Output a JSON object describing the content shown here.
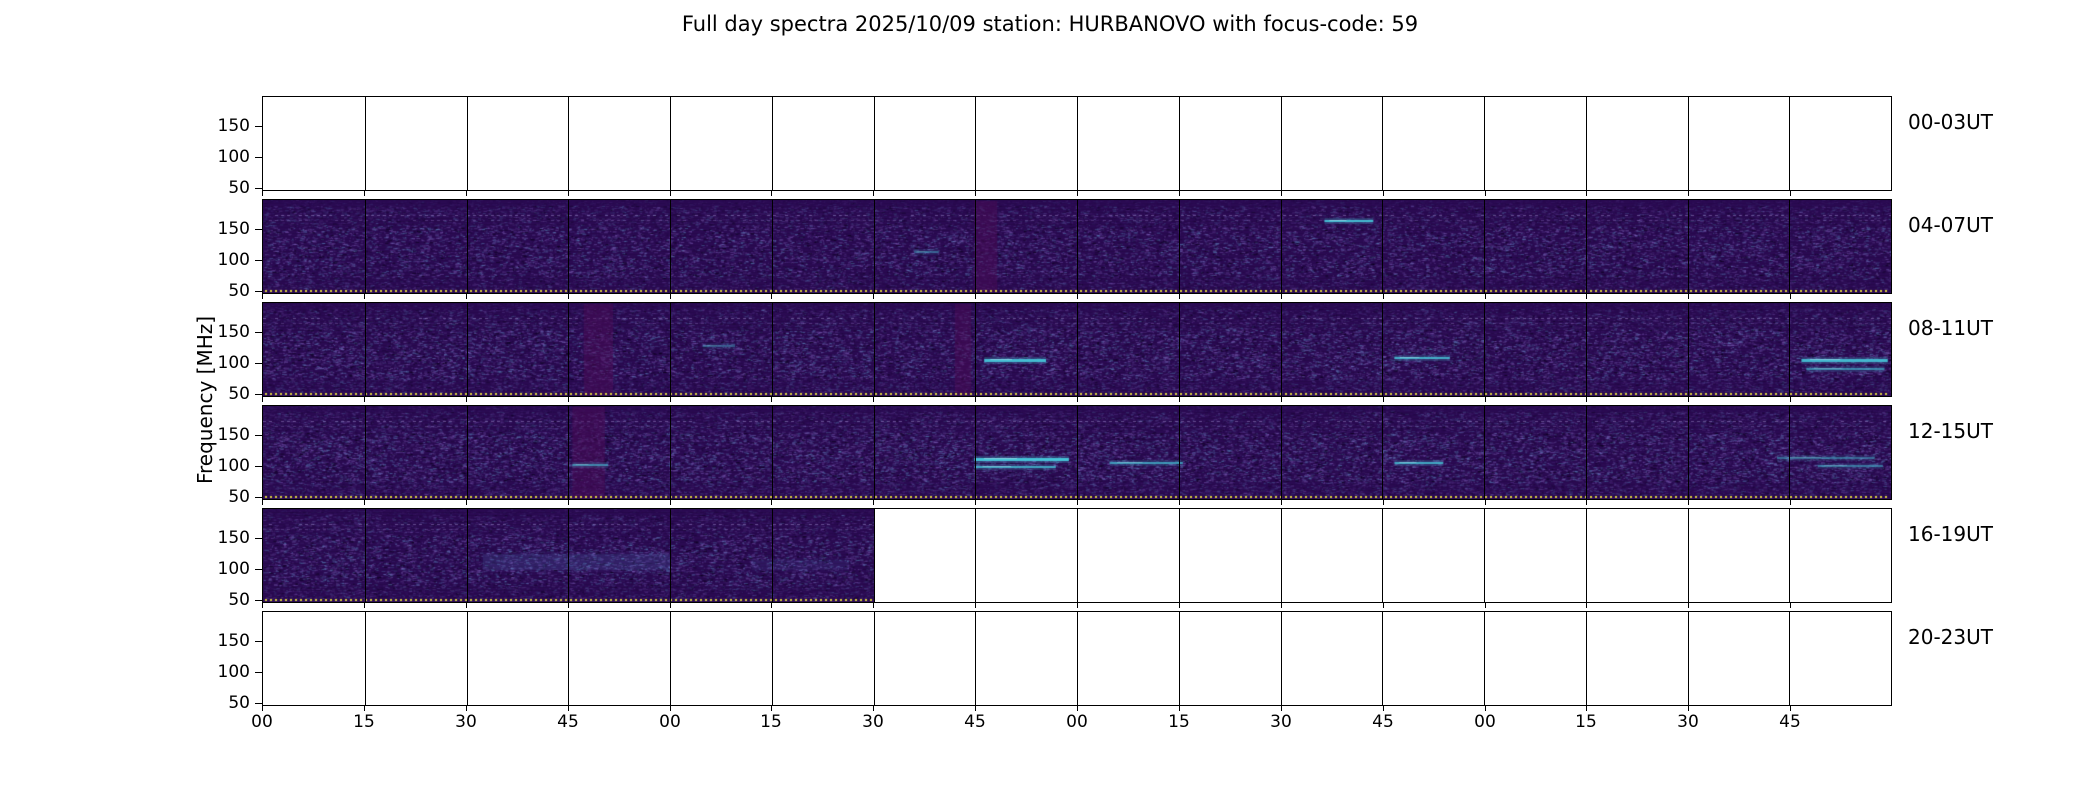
{
  "title": "Full day spectra 2025/10/09 station: HURBANOVO with focus-code: 59",
  "axes": {
    "ylabel": "Frequency [MHz]",
    "y_tick_labels": [
      "150",
      "100",
      "50"
    ],
    "x_tick_labels": [
      "00",
      "15",
      "30",
      "45",
      "00",
      "15",
      "30",
      "45",
      "00",
      "15",
      "30",
      "45",
      "00",
      "15",
      "30",
      "45"
    ]
  },
  "chart_data": {
    "type": "heatmap",
    "title": "Full day spectra 2025/10/09 station: HURBANOVO with focus-code: 59",
    "ylabel": "Frequency [MHz]",
    "y_tick_values": [
      150,
      100,
      50
    ],
    "x_tick_labels": [
      "00",
      "15",
      "30",
      "45",
      "00",
      "15",
      "30",
      "45",
      "00",
      "15",
      "30",
      "45",
      "00",
      "15",
      "30",
      "45"
    ],
    "segments_per_row": 16,
    "segment_minutes": 15,
    "hours_per_row": 4,
    "rows": [
      {
        "label": "00-03UT",
        "filled_segments": 0,
        "texture": 0,
        "streaks": [],
        "vbands": []
      },
      {
        "label": "04-07UT",
        "filled_segments": 16,
        "texture": 1.0,
        "streaks": [
          {
            "x": 0.652,
            "w": 0.03,
            "y": 0.22,
            "h": 2,
            "a": 0.95
          },
          {
            "x": 0.4,
            "w": 0.015,
            "y": 0.55,
            "h": 2,
            "a": 0.4
          }
        ],
        "vbands": [
          {
            "x": 0.437,
            "w": 0.014
          }
        ]
      },
      {
        "label": "08-11UT",
        "filled_segments": 16,
        "texture": 1.15,
        "streaks": [
          {
            "x": 0.443,
            "w": 0.038,
            "y": 0.6,
            "h": 3,
            "a": 0.95
          },
          {
            "x": 0.695,
            "w": 0.034,
            "y": 0.58,
            "h": 2,
            "a": 0.85
          },
          {
            "x": 0.945,
            "w": 0.053,
            "y": 0.6,
            "h": 3,
            "a": 0.9
          },
          {
            "x": 0.948,
            "w": 0.048,
            "y": 0.7,
            "h": 2,
            "a": 0.6
          },
          {
            "x": 0.27,
            "w": 0.02,
            "y": 0.45,
            "h": 2,
            "a": 0.35
          }
        ],
        "vbands": [
          {
            "x": 0.197,
            "w": 0.018
          },
          {
            "x": 0.425,
            "w": 0.01
          }
        ]
      },
      {
        "label": "12-15UT",
        "filled_segments": 16,
        "texture": 1.2,
        "streaks": [
          {
            "x": 0.437,
            "w": 0.058,
            "y": 0.56,
            "h": 3,
            "a": 1.0
          },
          {
            "x": 0.437,
            "w": 0.05,
            "y": 0.65,
            "h": 2,
            "a": 0.8
          },
          {
            "x": 0.52,
            "w": 0.045,
            "y": 0.6,
            "h": 2,
            "a": 0.7
          },
          {
            "x": 0.695,
            "w": 0.03,
            "y": 0.6,
            "h": 2,
            "a": 0.8
          },
          {
            "x": 0.19,
            "w": 0.022,
            "y": 0.62,
            "h": 2,
            "a": 0.6
          },
          {
            "x": 0.93,
            "w": 0.06,
            "y": 0.55,
            "h": 2,
            "a": 0.45
          },
          {
            "x": 0.955,
            "w": 0.04,
            "y": 0.63,
            "h": 2,
            "a": 0.5
          }
        ],
        "vbands": [
          {
            "x": 0.19,
            "w": 0.02
          }
        ]
      },
      {
        "label": "16-19UT",
        "filled_segments": 6,
        "texture": 1.05,
        "streaks": [
          {
            "x": 0.135,
            "w": 0.115,
            "y": 0.48,
            "h": 16,
            "a": 0.16
          },
          {
            "x": 0.3,
            "w": 0.06,
            "y": 0.55,
            "h": 10,
            "a": 0.1
          }
        ],
        "vbands": []
      },
      {
        "label": "20-23UT",
        "filled_segments": 0,
        "texture": 0,
        "streaks": [],
        "vbands": []
      }
    ],
    "colors": {
      "base": "#2a0a52",
      "speckle": "#8a6cc8",
      "speckle_blue": "#64a0d2",
      "streak": "#46c0d4",
      "baseline_dots": "#ded43d",
      "frame": "#000000"
    }
  }
}
